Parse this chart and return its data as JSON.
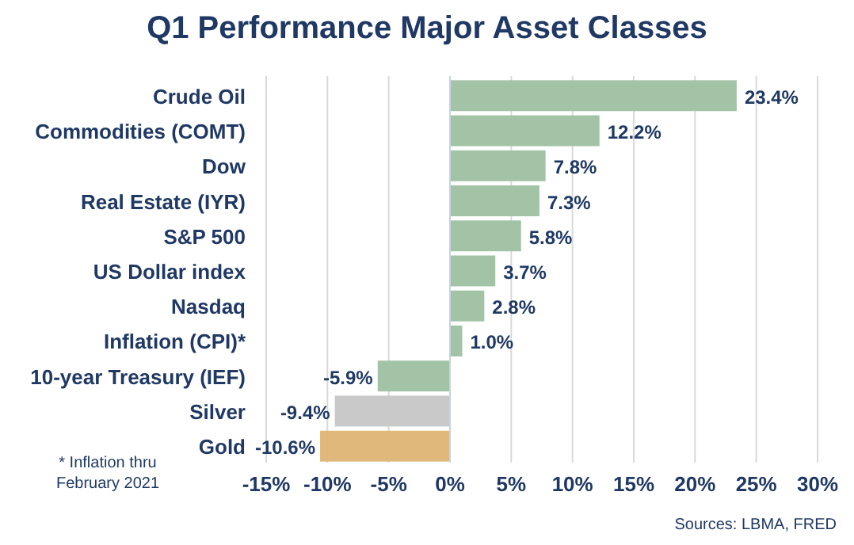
{
  "chart_data": {
    "type": "bar",
    "orientation": "horizontal",
    "title": "Q1 Performance Major Asset Classes",
    "categories": [
      "Crude Oil",
      "Commodities (COMT)",
      "Dow",
      "Real Estate (IYR)",
      "S&P 500",
      "US Dollar index",
      "Nasdaq",
      "Inflation (CPI)*",
      "10-year Treasury (IEF)",
      "Silver",
      "Gold"
    ],
    "values": [
      23.4,
      12.2,
      7.8,
      7.3,
      5.8,
      3.7,
      2.8,
      1.0,
      -5.9,
      -9.4,
      -10.6
    ],
    "colors": [
      "#a3c3a7",
      "#a3c3a7",
      "#a3c3a7",
      "#a3c3a7",
      "#a3c3a7",
      "#a3c3a7",
      "#a3c3a7",
      "#a3c3a7",
      "#a3c3a7",
      "#c9c9c9",
      "#e1b87c"
    ],
    "value_labels": [
      "23.4%",
      "12.2%",
      "7.8%",
      "7.3%",
      "5.8%",
      "3.7%",
      "2.8%",
      "1.0%",
      "-5.9%",
      "-9.4%",
      "-10.6%"
    ],
    "xlim": [
      -15,
      30
    ],
    "xticks": [
      {
        "value": -15,
        "label": "-15%"
      },
      {
        "value": -10,
        "label": "-10%"
      },
      {
        "value": -5,
        "label": "-5%"
      },
      {
        "value": 0,
        "label": "0%"
      },
      {
        "value": 5,
        "label": "5%"
      },
      {
        "value": 10,
        "label": "10%"
      },
      {
        "value": 15,
        "label": "15%"
      },
      {
        "value": 20,
        "label": "20%"
      },
      {
        "value": 25,
        "label": "25%"
      },
      {
        "value": 30,
        "label": "30%"
      }
    ],
    "grid": "x",
    "annotations": [
      "* Inflation thru February 2021",
      "Sources: LBMA, FRED"
    ]
  }
}
